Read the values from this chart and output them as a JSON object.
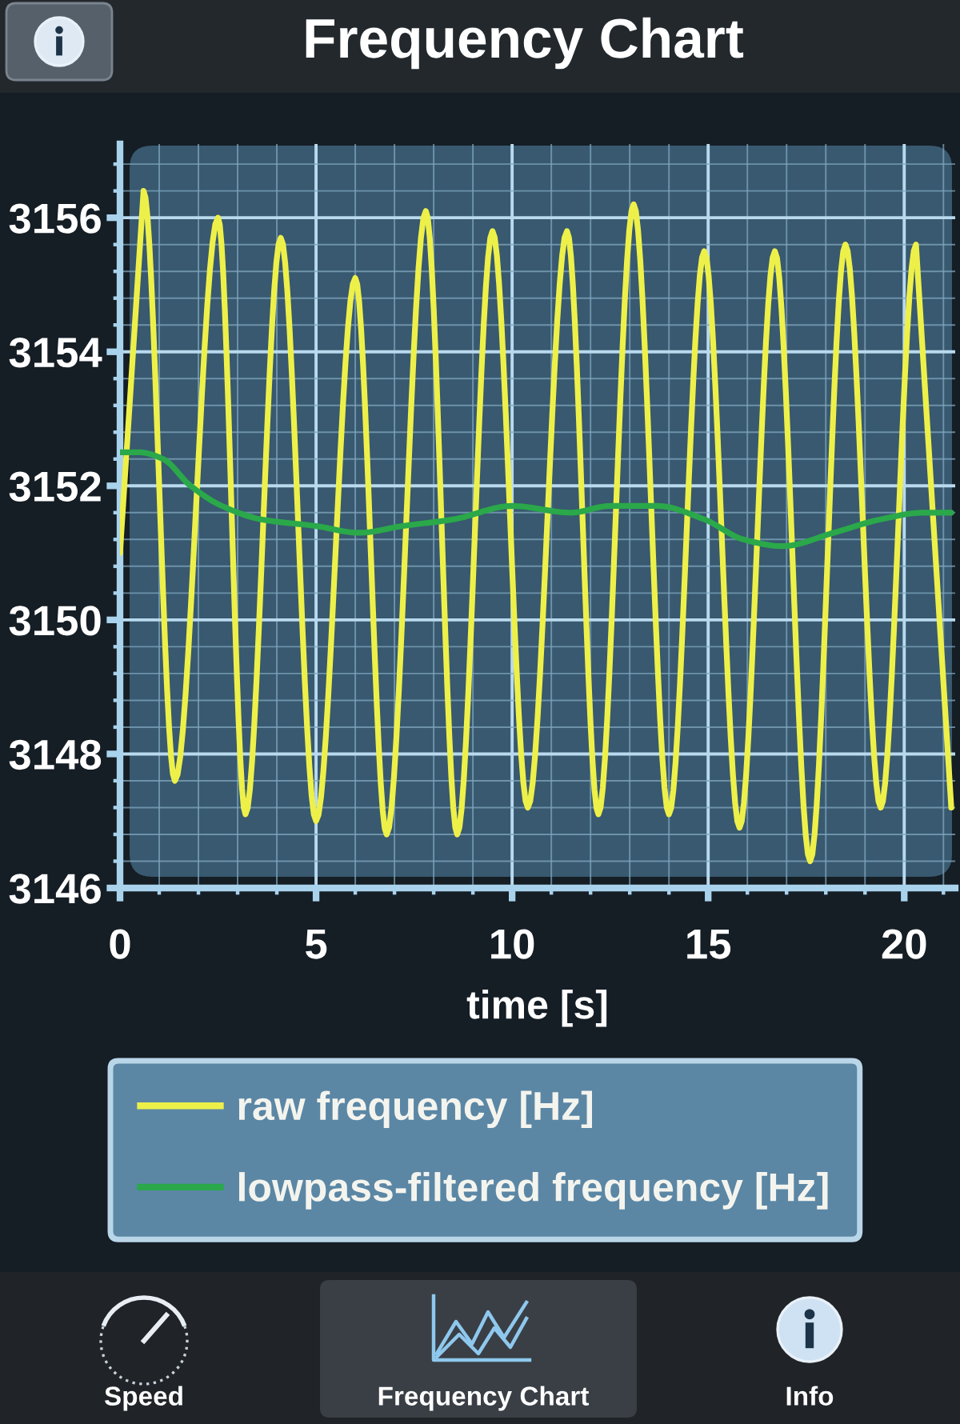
{
  "chart_data": {
    "type": "line",
    "title": "Frequency Chart",
    "xlabel": "time [s]",
    "series": [
      {
        "name": "raw frequency [Hz]",
        "color": "#eef04a",
        "x": [
          0,
          0.6,
          1.4,
          2.5,
          3.2,
          4.1,
          5.0,
          6.0,
          6.8,
          7.8,
          8.6,
          9.5,
          10.4,
          11.4,
          12.2,
          13.1,
          14.0,
          14.9,
          15.8,
          16.7,
          17.6,
          18.5,
          19.4,
          20.3,
          21.2
        ],
        "values": [
          3151.0,
          3156.4,
          3147.6,
          3156.0,
          3147.1,
          3155.7,
          3147.0,
          3155.1,
          3146.8,
          3156.1,
          3146.8,
          3155.8,
          3147.2,
          3155.8,
          3147.1,
          3156.2,
          3147.1,
          3155.5,
          3146.9,
          3155.5,
          3146.4,
          3155.6,
          3147.2,
          3155.6,
          3147.2
        ]
      },
      {
        "name": "lowpass-filtered frequency [Hz]",
        "color": "#2aa84a",
        "x": [
          0,
          0.5,
          1.1,
          1.8,
          2.6,
          3.6,
          5.0,
          6.1,
          7.2,
          8.5,
          10.0,
          11.5,
          12.5,
          13.7,
          14.9,
          15.9,
          16.9,
          18.2,
          19.4,
          20.5,
          21.2
        ],
        "values": [
          3152.5,
          3152.5,
          3152.4,
          3152.0,
          3151.7,
          3151.5,
          3151.4,
          3151.3,
          3151.4,
          3151.5,
          3151.7,
          3151.6,
          3151.7,
          3151.7,
          3151.5,
          3151.2,
          3151.1,
          3151.3,
          3151.5,
          3151.6,
          3151.6
        ]
      }
    ],
    "xlim": [
      0,
      21.3
    ],
    "xticks": [
      0,
      {
        "value": 1,
        "label": null
      },
      {
        "value": 2,
        "label": null
      },
      {
        "value": 3,
        "label": null
      },
      {
        "value": 4,
        "label": null
      },
      5,
      {
        "value": 6,
        "label": null
      },
      {
        "value": 7,
        "label": null
      },
      {
        "value": 8,
        "label": null
      },
      {
        "value": 9,
        "label": null
      },
      10,
      {
        "value": 11,
        "label": null
      },
      {
        "value": 12,
        "label": null
      },
      {
        "value": 13,
        "label": null
      },
      {
        "value": 14,
        "label": null
      },
      15,
      {
        "value": 16,
        "label": null
      },
      {
        "value": 17,
        "label": null
      },
      {
        "value": 18,
        "label": null
      },
      {
        "value": 19,
        "label": null
      },
      20,
      {
        "value": 21,
        "label": null
      }
    ],
    "ylim": [
      3146,
      3157.1
    ],
    "yticks": [
      3146,
      {
        "value": 3146.4,
        "label": null
      },
      {
        "value": 3146.8,
        "label": null
      },
      {
        "value": 3147.2,
        "label": null
      },
      {
        "value": 3147.6,
        "label": null
      },
      3148,
      {
        "value": 3148.4,
        "label": null
      },
      {
        "value": 3148.8,
        "label": null
      },
      {
        "value": 3149.2,
        "label": null
      },
      {
        "value": 3149.6,
        "label": null
      },
      3150,
      {
        "value": 3150.4,
        "label": null
      },
      {
        "value": 3150.8,
        "label": null
      },
      {
        "value": 3151.2,
        "label": null
      },
      {
        "value": 3151.6,
        "label": null
      },
      3152,
      {
        "value": 3152.4,
        "label": null
      },
      {
        "value": 3152.8,
        "label": null
      },
      {
        "value": 3153.2,
        "label": null
      },
      {
        "value": 3153.6,
        "label": null
      },
      3154,
      {
        "value": 3154.4,
        "label": null
      },
      {
        "value": 3154.8,
        "label": null
      },
      {
        "value": 3155.2,
        "label": null
      },
      {
        "value": 3155.6,
        "label": null
      },
      3156,
      {
        "value": 3156.4,
        "label": null
      },
      {
        "value": 3156.8,
        "label": null
      }
    ],
    "grid": true,
    "legend": "bottom",
    "line_style": "solid",
    "annotations": [
      "Speed",
      "Frequency Chart",
      "Info"
    ]
  }
}
